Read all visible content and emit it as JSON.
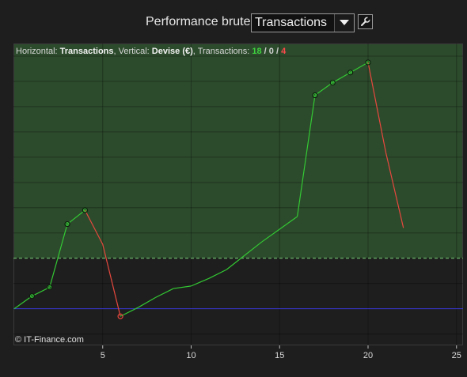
{
  "header": {
    "title": "Performance brute",
    "select_value": "Transactions"
  },
  "info": {
    "h_label": "Horizontal: ",
    "h_value": "Transactions",
    "v_label": ", Vertical: ",
    "v_value": "Devise (€)",
    "t_label": ", Transactions: ",
    "wins": "18",
    "sep1": " / ",
    "neutral": "0",
    "sep2": " / ",
    "losses": "4"
  },
  "copyright": "© IT-Finance.com",
  "colors": {
    "positive_area": "#2c4a2c",
    "negative_area": "#1e1e1e",
    "gain_line": "#33c933",
    "loss_line": "#e8483e",
    "zero_line": "#3a3ad8",
    "threshold_line": "#7fd07f"
  },
  "chart_data": {
    "type": "line",
    "xlim": [
      0,
      25
    ],
    "xticks": [
      "5",
      "10",
      "15",
      "20",
      "25"
    ],
    "ylim": [
      -1.45,
      10.5
    ],
    "grid": true,
    "zero_value": 0,
    "threshold_value": 2,
    "points": [
      {
        "x": 0,
        "y": 0,
        "m": false
      },
      {
        "x": 1,
        "y": 0.5,
        "m": true
      },
      {
        "x": 2,
        "y": 0.85,
        "m": true
      },
      {
        "x": 3,
        "y": 3.35,
        "m": true
      },
      {
        "x": 4,
        "y": 3.9,
        "m": true
      },
      {
        "x": 5,
        "y": 2.55,
        "m": false
      },
      {
        "x": 6,
        "y": -0.3,
        "m": true
      },
      {
        "x": 7,
        "y": 0.05,
        "m": false
      },
      {
        "x": 8,
        "y": 0.45,
        "m": false
      },
      {
        "x": 9,
        "y": 0.8,
        "m": false
      },
      {
        "x": 10,
        "y": 0.9,
        "m": false
      },
      {
        "x": 11,
        "y": 1.2,
        "m": false
      },
      {
        "x": 12,
        "y": 1.55,
        "m": false
      },
      {
        "x": 13,
        "y": 2.1,
        "m": false
      },
      {
        "x": 14,
        "y": 2.65,
        "m": false
      },
      {
        "x": 15,
        "y": 3.15,
        "m": false
      },
      {
        "x": 16,
        "y": 3.65,
        "m": false
      },
      {
        "x": 17,
        "y": 8.45,
        "m": true
      },
      {
        "x": 18,
        "y": 8.95,
        "m": true
      },
      {
        "x": 19,
        "y": 9.35,
        "m": true
      },
      {
        "x": 20,
        "y": 9.75,
        "m": true
      },
      {
        "x": 21,
        "y": 6.2,
        "m": false
      },
      {
        "x": 22,
        "y": 3.2,
        "m": false
      }
    ]
  }
}
